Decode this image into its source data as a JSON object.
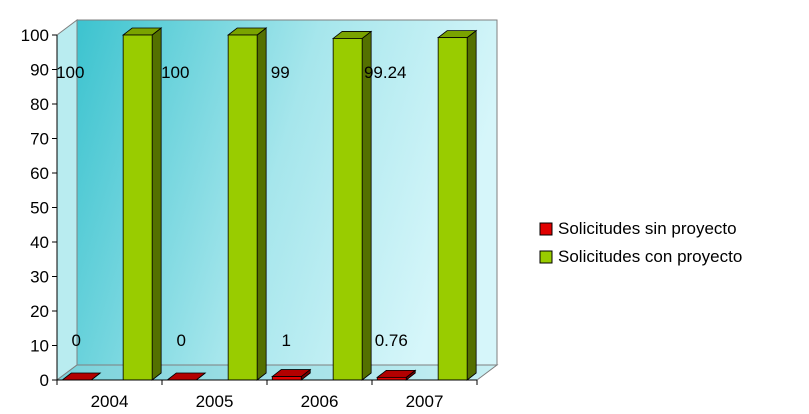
{
  "chart_data": {
    "type": "bar",
    "style": "3d-clustered",
    "title": "",
    "xlabel": "",
    "ylabel": "",
    "categories": [
      "2004",
      "2005",
      "2006",
      "2007"
    ],
    "ylim": [
      0,
      100
    ],
    "yticks": [
      0,
      10,
      20,
      30,
      40,
      50,
      60,
      70,
      80,
      90,
      100
    ],
    "grid": false,
    "legend_position": "right",
    "series": [
      {
        "name": "Solicitudes sin proyecto",
        "values": [
          0,
          0,
          1,
          0.76
        ],
        "labels": [
          "0",
          "0",
          "1",
          "0.76"
        ],
        "color": "#e00000"
      },
      {
        "name": "Solicitudes con proyecto",
        "values": [
          100,
          100,
          99,
          99.24
        ],
        "labels": [
          "100",
          "100",
          "99",
          "99.24"
        ],
        "color": "#99cc00"
      }
    ]
  }
}
